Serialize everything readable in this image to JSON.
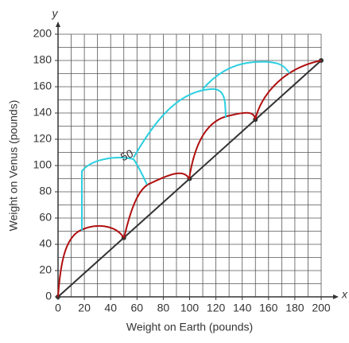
{
  "chart_data": {
    "type": "line",
    "x_label": "Weight on Earth (pounds)",
    "y_label": "Weight on Venus (pounds)",
    "x_axis_name": "x",
    "y_axis_name": "y",
    "x": [
      0,
      50,
      100,
      150,
      200
    ],
    "series": [
      {
        "color": "#333333",
        "values": [
          0,
          45,
          90,
          135,
          180
        ]
      }
    ],
    "xlim": [
      0,
      200
    ],
    "ylim": [
      0,
      200
    ],
    "xticks": [
      0,
      20,
      40,
      60,
      80,
      100,
      120,
      140,
      160,
      180,
      200
    ],
    "yticks": [
      0,
      20,
      40,
      60,
      80,
      100,
      120,
      140,
      160,
      180,
      200
    ],
    "xgrid": [
      0,
      10,
      20,
      30,
      40,
      50,
      60,
      70,
      80,
      90,
      100,
      110,
      120,
      130,
      140,
      150,
      160,
      170,
      180,
      190,
      200
    ],
    "ygrid": [
      0,
      10,
      20,
      30,
      40,
      50,
      60,
      70,
      80,
      90,
      100,
      110,
      120,
      130,
      140,
      150,
      160,
      170,
      180,
      190,
      200
    ],
    "grid": true,
    "annotation": "50"
  }
}
